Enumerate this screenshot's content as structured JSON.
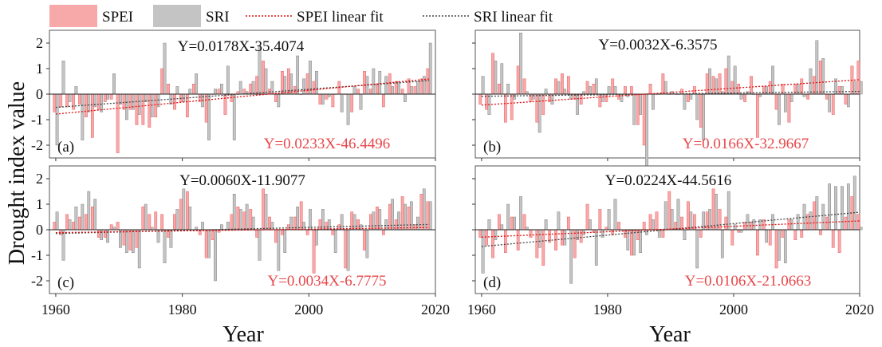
{
  "legend": {
    "spei": "SPEI",
    "sri": "SRI",
    "spei_fit": "SPEI linear fit",
    "sri_fit": "SRI linear fit"
  },
  "axes": {
    "ylabel": "Drought index value",
    "xlabel_left": "Year",
    "xlabel_right": "Year"
  },
  "colors": {
    "spei": "#f7a9aa",
    "spei_edge": "#e8474a",
    "sri": "#c4c4c4",
    "sri_edge": "#6e6e6e",
    "spei_fit": "#e01010",
    "sri_fit": "#444444",
    "red_text": "#e8474a"
  },
  "chart_data": [
    {
      "type": "bar",
      "panel_label": "(a)",
      "sri_equation": "Y=0.0178X-35.4074",
      "spei_equation": "Y=0.0233X-46.4496",
      "xlim": [
        1959,
        2020
      ],
      "ylim": [
        -2.5,
        2.5
      ],
      "xticks": [
        1960,
        1980,
        2000,
        2020
      ],
      "yticks": [
        -2,
        -1,
        0,
        1,
        2
      ],
      "show_xticks": false,
      "show_yticks": true,
      "years_start": 1960,
      "spei": [
        -0.7,
        -0.5,
        -0.5,
        -0.6,
        -0.4,
        -0.9,
        -1.7,
        -0.6,
        -0.3,
        -0.2,
        -2.3,
        -0.6,
        -0.6,
        -1.2,
        -1.2,
        -1.3,
        -0.9,
        1.0,
        0.4,
        -0.6,
        -0.3,
        -0.9,
        0.4,
        -0.3,
        -1.1,
        0.0,
        0.2,
        -0.8,
        -0.3,
        0.1,
        0.2,
        0.4,
        0.7,
        1.3,
        0.2,
        -0.3,
        0.9,
        1.0,
        0.3,
        0.0,
        0.8,
        0.5,
        -0.4,
        -0.2,
        -0.5,
        0.5,
        0.0,
        -0.7,
        0.2,
        0.9,
        0.2,
        0.4,
        -0.5,
        0.8,
        0.5,
        0.2,
        0.6,
        0.3,
        0.6,
        1.0
      ],
      "sri": [
        -2.0,
        1.3,
        -0.3,
        0.3,
        -1.8,
        -0.7,
        -0.5,
        -0.7,
        -0.2,
        0.8,
        -0.4,
        -1.0,
        -0.6,
        -0.8,
        -0.3,
        -0.9,
        -0.5,
        2.0,
        -0.4,
        0.3,
        -0.3,
        0.2,
        0.8,
        -0.5,
        -1.8,
        0.2,
        0.4,
        1.1,
        -1.8,
        0.5,
        0.1,
        0.5,
        1.9,
        1.0,
        0.5,
        -0.5,
        0.7,
        0.8,
        1.5,
        0.6,
        1.3,
        0.9,
        -0.4,
        -0.1,
        0.0,
        -0.7,
        -1.2,
        0.3,
        -0.6,
        0.7,
        1.0,
        0.9,
        0.7,
        0.3,
        0.5,
        -0.3,
        0.3,
        0.5,
        0.7,
        2.0
      ],
      "spei_fit": {
        "slope": 0.0233,
        "intercept": -46.4496
      },
      "sri_fit": {
        "slope": 0.0178,
        "intercept": -35.4074
      }
    },
    {
      "type": "bar",
      "panel_label": "(b)",
      "sri_equation": "Y=0.0032X-6.3575",
      "spei_equation": "Y=0.0166X-32.9667",
      "xlim": [
        1959,
        2020
      ],
      "ylim": [
        -2.5,
        2.5
      ],
      "xticks": [
        1960,
        1980,
        2000,
        2020
      ],
      "yticks": [
        -2,
        -1,
        0,
        1,
        2
      ],
      "show_xticks": false,
      "show_yticks": false,
      "years_start": 1960,
      "spei": [
        -0.4,
        -0.6,
        1.6,
        0.4,
        -1.1,
        -1.0,
        1.1,
        0.6,
        -0.3,
        -1.1,
        -0.8,
        -0.3,
        0.6,
        0.8,
        0.7,
        -0.2,
        -0.4,
        0.5,
        0.4,
        -0.5,
        -0.3,
        0.6,
        -0.2,
        0.3,
        0.3,
        -1.2,
        -2.0,
        0.4,
        0.0,
        0.8,
        0.0,
        0.0,
        0.2,
        -0.3,
        0.3,
        -1.3,
        0.8,
        0.7,
        0.8,
        1.0,
        0.5,
        0.4,
        -0.3,
        0.7,
        -1.7,
        0.3,
        0.5,
        -0.6,
        0.4,
        -1.1,
        0.4,
        0.6,
        -0.2,
        0.7,
        1.3,
        -0.2,
        -0.8,
        0.3,
        -0.4,
        1.1,
        1.3
      ],
      "sri": [
        0.7,
        -0.8,
        1.3,
        1.2,
        0.4,
        -0.2,
        2.4,
        0.1,
        -0.2,
        -1.5,
        0.2,
        -0.4,
        0.5,
        0.2,
        -0.2,
        -0.8,
        0.1,
        0.3,
        0.6,
        -0.3,
        0.3,
        0.3,
        -0.3,
        -0.1,
        -1.2,
        -0.8,
        -3.0,
        -0.6,
        0.0,
        0.5,
        0.1,
        0.0,
        -0.6,
        -0.2,
        -1.0,
        -1.8,
        1.0,
        0.6,
        0.1,
        1.5,
        1.1,
        -0.2,
        0.1,
        0.0,
        -0.1,
        0.3,
        1.1,
        -1.2,
        -0.7,
        -0.3,
        0.4,
        -0.1,
        1.0,
        2.1,
        1.4,
        -0.7,
        0.6,
        0.3,
        -0.5,
        0.5,
        0.5
      ],
      "spei_fit": {
        "slope": 0.0166,
        "intercept": -32.9667
      },
      "sri_fit": {
        "slope": 0.0032,
        "intercept": -6.3575
      }
    },
    {
      "type": "bar",
      "panel_label": "(c)",
      "sri_equation": "Y=0.0060X-11.9077",
      "spei_equation": "Y=0.0034X-6.7775",
      "xlim": [
        1959,
        2020
      ],
      "ylim": [
        -2.5,
        2.5
      ],
      "xticks": [
        1960,
        1980,
        2000,
        2020
      ],
      "yticks": [
        -2,
        -1,
        0,
        1,
        2
      ],
      "show_xticks": true,
      "show_yticks": true,
      "years_start": 1960,
      "spei": [
        0.3,
        -0.2,
        0.6,
        0.3,
        0.5,
        0.6,
        0.9,
        -0.3,
        -0.3,
        0.2,
        0.3,
        -0.6,
        -0.8,
        -0.7,
        0.9,
        0.6,
        0.7,
        0.6,
        -0.3,
        0.6,
        1.2,
        1.5,
        0.0,
        -0.2,
        -1.1,
        -0.4,
        -0.1,
        0.0,
        0.6,
        0.9,
        0.7,
        0.8,
        -0.3,
        1.6,
        0.5,
        -0.5,
        -0.2,
        0.2,
        0.5,
        1.1,
        -0.2,
        -1.7,
        0.4,
        0.3,
        -0.2,
        0.2,
        -1.5,
        0.7,
        0.4,
        -0.8,
        0.6,
        0.9,
        -0.2,
        1.0,
        0.4,
        1.3,
        0.9,
        0.2,
        1.4,
        1.1
      ],
      "sri": [
        0.7,
        -1.2,
        0.4,
        0.9,
        1.0,
        1.5,
        1.2,
        -0.4,
        -0.5,
        0.1,
        -0.7,
        -0.9,
        -0.9,
        -1.5,
        1.0,
        0.1,
        -0.5,
        -1.3,
        -0.7,
        0.8,
        1.6,
        0.9,
        0.1,
        0.3,
        -1.1,
        -2.0,
        0.2,
        0.3,
        1.4,
        0.8,
        1.0,
        0.5,
        -1.2,
        1.4,
        0.3,
        -1.6,
        -0.9,
        0.5,
        0.9,
        0.3,
        0.8,
        -0.6,
        0.8,
        0.4,
        -0.9,
        0.6,
        -1.6,
        0.6,
        0.2,
        -1.1,
        0.7,
        0.8,
        0.4,
        1.2,
        0.7,
        1.0,
        1.1,
        0.5,
        1.6,
        1.1
      ],
      "spei_fit": {
        "slope": 0.0034,
        "intercept": -6.7775
      },
      "sri_fit": {
        "slope": 0.006,
        "intercept": -11.9077
      }
    },
    {
      "type": "bar",
      "panel_label": "(d)",
      "sri_equation": "Y=0.0224X-44.5616",
      "spei_equation": "Y=0.0106X-21.0663",
      "xlim": [
        1959,
        2020
      ],
      "ylim": [
        -2.5,
        2.5
      ],
      "xticks": [
        1960,
        1980,
        2000,
        2020
      ],
      "yticks": [
        -2,
        -1,
        0,
        1,
        2
      ],
      "show_xticks": true,
      "show_yticks": false,
      "years_start": 1960,
      "spei": [
        -0.3,
        -0.6,
        -1.1,
        0.6,
        -0.9,
        0.5,
        -0.8,
        0.6,
        -0.3,
        -1.1,
        -1.4,
        -0.5,
        -0.8,
        -0.6,
        0.5,
        -1.1,
        -0.5,
        1.0,
        -0.1,
        0.8,
        0.1,
        -0.2,
        0.3,
        -0.3,
        -1.0,
        -0.4,
        0.3,
        0.6,
        0.7,
        -0.3,
        1.5,
        0.3,
        0.5,
        1.1,
        0.6,
        -0.3,
        0.7,
        1.6,
        0.8,
        0.5,
        -0.6,
        -0.1,
        0.3,
        0.3,
        -1.0,
        0.4,
        -0.6,
        -1.5,
        -0.3,
        0.4,
        -0.4,
        -0.3,
        0.6,
        1.1,
        -0.2,
        0.5,
        -0.7,
        -0.9,
        0.5,
        1.3,
        0.6
      ],
      "sri": [
        -1.7,
        0.4,
        -0.4,
        0.2,
        1.0,
        0.5,
        1.3,
        0.1,
        0.0,
        -0.7,
        0.4,
        0.0,
        0.7,
        -0.6,
        -2.1,
        -0.4,
        -0.2,
        0.4,
        -1.4,
        -0.3,
        0.8,
        1.2,
        0.0,
        -0.8,
        -1.0,
        -0.9,
        -0.2,
        0.4,
        -0.3,
        1.1,
        0.8,
        1.2,
        -0.4,
        0.7,
        -1.5,
        0.7,
        0.8,
        1.4,
        -1.1,
        1.5,
        0.2,
        -0.1,
        0.6,
        0.4,
        0.4,
        -0.5,
        0.6,
        -1.2,
        -1.3,
        0.4,
        0.6,
        1.0,
        0.7,
        1.3,
        1.0,
        1.8,
        1.7,
        1.7,
        1.8,
        2.1,
        0.1
      ],
      "spei_fit": {
        "slope": 0.0106,
        "intercept": -21.0663
      },
      "sri_fit": {
        "slope": 0.0224,
        "intercept": -44.5616
      }
    }
  ]
}
